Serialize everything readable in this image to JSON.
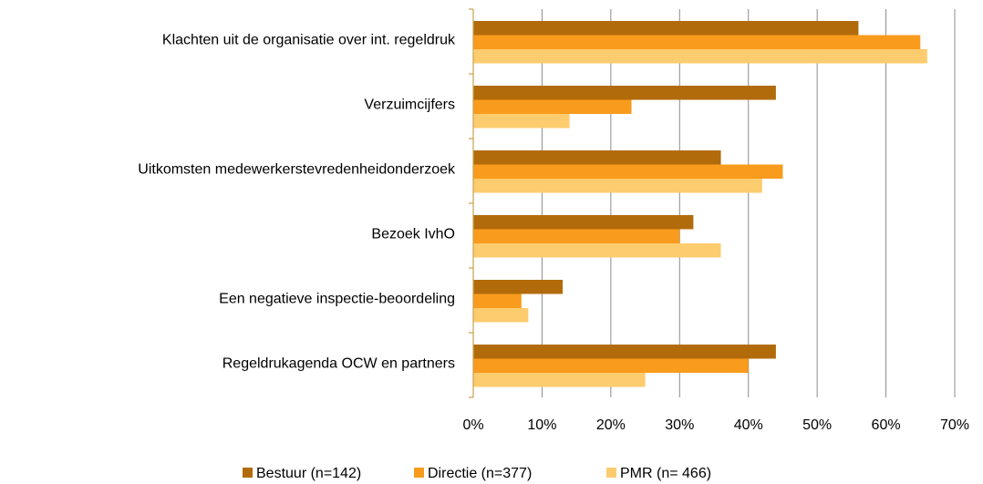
{
  "chart_data": {
    "type": "hbar",
    "categories": [
      "Klachten uit de organisatie over int. regeldruk",
      "Verzuimcijfers",
      "Uitkomsten medewerkerstevredenheidonderzoek",
      "Bezoek IvhO",
      "Een negatieve inspectie-beoordeling",
      "Regeldrukagenda OCW en partners"
    ],
    "series": [
      {
        "name": "Bestuur (n=142)",
        "color": "#b26b0b",
        "values": [
          56,
          44,
          36,
          32,
          13,
          44
        ]
      },
      {
        "name": "Directie (n=377)",
        "color": "#f99b1c",
        "values": [
          65,
          23,
          45,
          30,
          7,
          40
        ]
      },
      {
        "name": "PMR (n= 466)",
        "color": "#fdcc6e",
        "values": [
          66,
          14,
          42,
          36,
          8,
          25
        ]
      }
    ],
    "xlim": [
      0,
      70
    ],
    "xticks": [
      {
        "value": 0,
        "label": "0%"
      },
      {
        "value": 10,
        "label": "10%"
      },
      {
        "value": 20,
        "label": "20%"
      },
      {
        "value": 30,
        "label": "30%"
      },
      {
        "value": 40,
        "label": "40%"
      },
      {
        "value": 50,
        "label": "50%"
      },
      {
        "value": 60,
        "label": "60%"
      },
      {
        "value": 70,
        "label": "70%"
      }
    ],
    "grid": true,
    "legend": "bottom"
  }
}
